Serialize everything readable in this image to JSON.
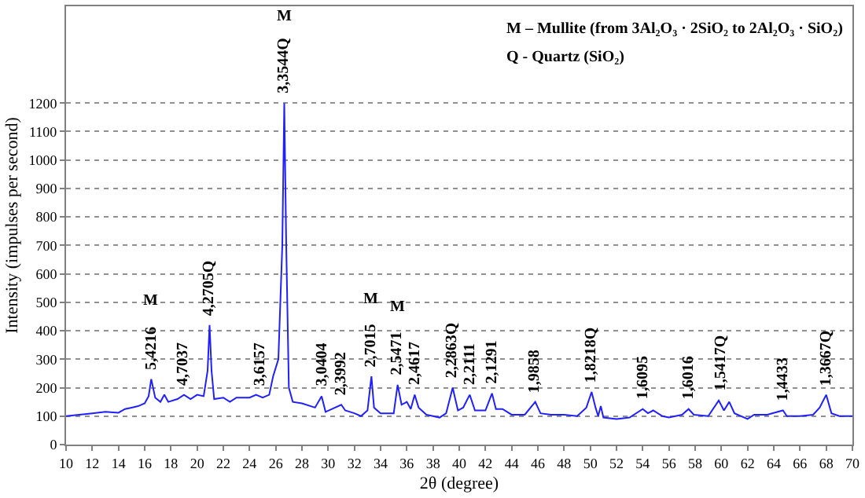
{
  "chart_data": {
    "type": "line",
    "xlabel": "2θ (degree)",
    "ylabel": "Intensity (impulses per second)",
    "x": [
      10,
      11,
      12,
      13,
      14,
      14.5,
      15,
      15.5,
      16,
      16.3,
      16.5,
      16.8,
      17.2,
      17.5,
      17.8,
      18.5,
      19,
      19.5,
      20,
      20.5,
      20.8,
      20.95,
      21.1,
      21.3,
      22,
      22.5,
      23,
      24,
      24.5,
      25,
      25.5,
      25.8,
      26.2,
      26.5,
      26.65,
      26.8,
      27,
      27.3,
      28,
      29,
      29.5,
      29.8,
      30.3,
      31,
      31.3,
      32,
      32.5,
      33,
      33.3,
      33.5,
      34,
      35,
      35.3,
      35.6,
      36,
      36.3,
      36.6,
      36.9,
      37.5,
      38,
      38.5,
      39,
      39.5,
      39.9,
      40.3,
      40.8,
      41.2,
      42,
      42.5,
      42.8,
      43.3,
      44,
      45,
      45.8,
      46.2,
      47,
      48,
      49,
      49.7,
      50.1,
      50.4,
      50.6,
      50.8,
      51,
      52,
      53,
      54,
      54.4,
      54.8,
      55.5,
      56,
      57,
      57.5,
      57.9,
      59,
      59.8,
      60.2,
      60.6,
      61,
      62,
      62.5,
      63.5,
      64.7,
      65,
      66,
      67,
      67.5,
      68,
      68.4,
      69,
      70
    ],
    "series": [
      {
        "color": "#2020ff",
        "values": [
          100,
          105,
          110,
          115,
          112,
          125,
          130,
          135,
          145,
          170,
          230,
          165,
          150,
          175,
          150,
          160,
          175,
          160,
          175,
          170,
          260,
          420,
          260,
          160,
          165,
          150,
          165,
          165,
          175,
          165,
          175,
          240,
          300,
          700,
          1200,
          700,
          200,
          150,
          145,
          130,
          170,
          115,
          125,
          140,
          120,
          110,
          100,
          120,
          240,
          130,
          110,
          110,
          210,
          140,
          150,
          125,
          175,
          130,
          105,
          100,
          95,
          110,
          200,
          120,
          130,
          175,
          120,
          120,
          180,
          125,
          125,
          105,
          105,
          150,
          110,
          105,
          105,
          100,
          130,
          185,
          130,
          100,
          135,
          95,
          90,
          95,
          125,
          110,
          120,
          100,
          95,
          105,
          125,
          105,
          100,
          155,
          120,
          150,
          110,
          90,
          105,
          105,
          120,
          100,
          100,
          105,
          130,
          175,
          110,
          100,
          100
        ]
      }
    ],
    "xlim": [
      10,
      70
    ],
    "xticks": [
      10,
      12,
      14,
      16,
      18,
      20,
      22,
      24,
      26,
      28,
      30,
      32,
      34,
      36,
      38,
      40,
      42,
      44,
      46,
      48,
      50,
      52,
      54,
      56,
      58,
      60,
      62,
      64,
      66,
      68,
      70
    ],
    "ylim": [
      0,
      1540
    ],
    "yticks": [
      0,
      100,
      200,
      300,
      400,
      500,
      600,
      700,
      800,
      900,
      1000,
      1100,
      1200
    ],
    "grid": "y",
    "legend": false,
    "marker": "none",
    "line_style": "solid",
    "annotations": [
      {
        "text": "5,4216",
        "x": 16.5,
        "y": 230
      },
      "M",
      {
        "text": "4,7037",
        "x": 18.9,
        "y": 175
      },
      {
        "text": "4,2705Q",
        "x": 20.95,
        "y": 420
      },
      {
        "text": "3,6157",
        "x": 24.8,
        "y": 175
      },
      {
        "text": "3,3544Q",
        "x": 26.65,
        "y": 1200
      },
      "M",
      {
        "text": "3,0404",
        "x": 29.5,
        "y": 170
      },
      {
        "text": "2,3992",
        "x": 31,
        "y": 140
      },
      {
        "text": "2,7015",
        "x": 33.3,
        "y": 240
      },
      "M",
      {
        "text": "2,5471",
        "x": 35.3,
        "y": 210
      },
      "M",
      {
        "text": "2,4617",
        "x": 36.6,
        "y": 175
      },
      {
        "text": "2,2863Q",
        "x": 39.5,
        "y": 200
      },
      {
        "text": "2,2111",
        "x": 40.8,
        "y": 175
      },
      {
        "text": "2,1291",
        "x": 42.5,
        "y": 180
      },
      {
        "text": "1,9858",
        "x": 45.8,
        "y": 150
      },
      {
        "text": "1,8218Q",
        "x": 50.1,
        "y": 185
      },
      {
        "text": "1,6095",
        "x": 54,
        "y": 125
      },
      {
        "text": "1,6016",
        "x": 57.5,
        "y": 125
      },
      {
        "text": "1,5417Q",
        "x": 60,
        "y": 155
      },
      {
        "text": "1,4433",
        "x": 64.7,
        "y": 120
      },
      {
        "text": "1,3667Q",
        "x": 68,
        "y": 175
      },
      "M – Mullite (from 3Al₂O₃ · 2SiO₂ to 2Al₂O₃ · SiO₂)",
      "Q - Quartz (SiO₂)"
    ]
  }
}
